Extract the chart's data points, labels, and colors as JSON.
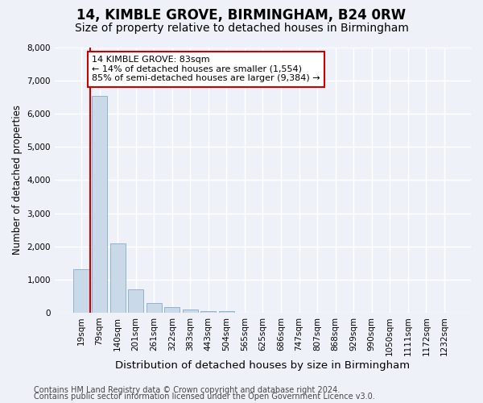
{
  "title": "14, KIMBLE GROVE, BIRMINGHAM, B24 0RW",
  "subtitle": "Size of property relative to detached houses in Birmingham",
  "xlabel": "Distribution of detached houses by size in Birmingham",
  "ylabel": "Number of detached properties",
  "categories": [
    "19sqm",
    "79sqm",
    "140sqm",
    "201sqm",
    "261sqm",
    "322sqm",
    "383sqm",
    "443sqm",
    "504sqm",
    "565sqm",
    "625sqm",
    "686sqm",
    "747sqm",
    "807sqm",
    "868sqm",
    "929sqm",
    "990sqm",
    "1050sqm",
    "1111sqm",
    "1172sqm",
    "1232sqm"
  ],
  "values": [
    1300,
    6550,
    2080,
    690,
    290,
    155,
    95,
    50,
    50,
    0,
    0,
    0,
    0,
    0,
    0,
    0,
    0,
    0,
    0,
    0,
    0
  ],
  "bar_color": "#c9d9e8",
  "bar_edge_color": "#8eb4d0",
  "property_line_bar_index": 1,
  "annotation_text": "14 KIMBLE GROVE: 83sqm\n← 14% of detached houses are smaller (1,554)\n85% of semi-detached houses are larger (9,384) →",
  "annotation_box_facecolor": "#ffffff",
  "annotation_box_edgecolor": "#cc0000",
  "property_line_color": "#cc0000",
  "ylim": [
    0,
    8000
  ],
  "yticks": [
    0,
    1000,
    2000,
    3000,
    4000,
    5000,
    6000,
    7000,
    8000
  ],
  "footer_line1": "Contains HM Land Registry data © Crown copyright and database right 2024.",
  "footer_line2": "Contains public sector information licensed under the Open Government Licence v3.0.",
  "background_color": "#eef2f8",
  "plot_bg_color": "#eef2f8",
  "title_fontsize": 12,
  "subtitle_fontsize": 10,
  "xlabel_fontsize": 9.5,
  "ylabel_fontsize": 8.5,
  "tick_fontsize": 7.5,
  "annotation_fontsize": 8,
  "footer_fontsize": 7
}
